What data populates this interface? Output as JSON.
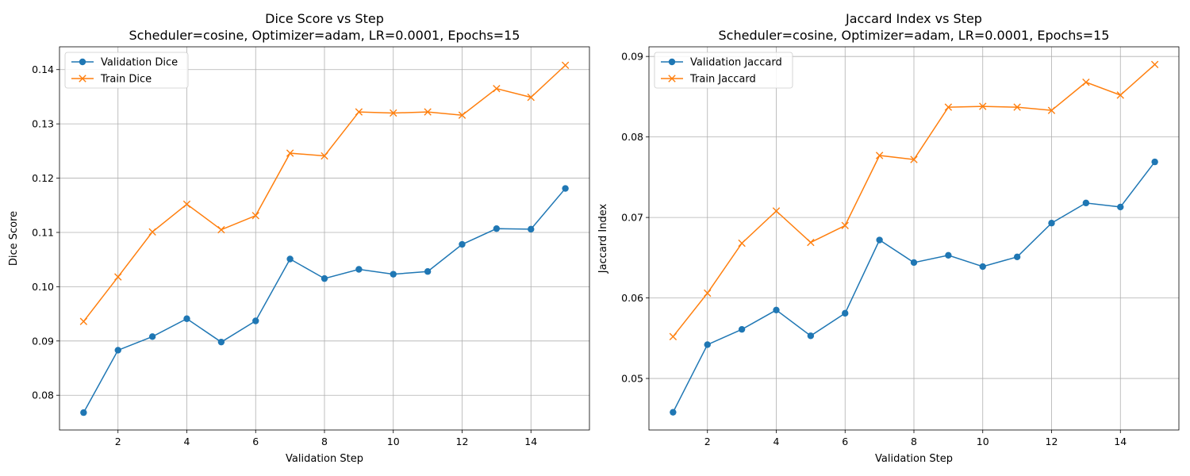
{
  "chart_data": [
    {
      "type": "line",
      "title": "Dice Score vs Step",
      "subtitle": "Scheduler=cosine, Optimizer=adam, LR=0.0001, Epochs=15",
      "xlabel": "Validation Step",
      "ylabel": "Dice Score",
      "xlim": [
        0.3,
        15.7
      ],
      "ylim": [
        0.0736,
        0.1442
      ],
      "xticks": [
        2,
        4,
        6,
        8,
        10,
        12,
        14
      ],
      "yticks": [
        0.08,
        0.09,
        0.1,
        0.11,
        0.12,
        0.13,
        0.14
      ],
      "ytick_labels": [
        "0.08",
        "0.09",
        "0.10",
        "0.11",
        "0.12",
        "0.13",
        "0.14"
      ],
      "grid": true,
      "legend_position": "top-left",
      "x": [
        1,
        2,
        3,
        4,
        5,
        6,
        7,
        8,
        9,
        10,
        11,
        12,
        13,
        14,
        15
      ],
      "series": [
        {
          "name": "Validation Dice",
          "color": "#1f77b4",
          "marker": "circle",
          "values": [
            0.0768,
            0.0883,
            0.0908,
            0.0941,
            0.0898,
            0.0937,
            0.1051,
            0.1015,
            0.1032,
            0.1023,
            0.1028,
            0.1078,
            0.1107,
            0.1106,
            0.1181
          ]
        },
        {
          "name": "Train Dice",
          "color": "#ff7f0e",
          "marker": "x",
          "values": [
            0.0936,
            0.1018,
            0.1101,
            0.1152,
            0.1105,
            0.1131,
            0.1246,
            0.1241,
            0.1322,
            0.132,
            0.1322,
            0.1316,
            0.1365,
            0.1349,
            0.1408
          ]
        }
      ]
    },
    {
      "type": "line",
      "title": "Jaccard Index vs Step",
      "subtitle": "Scheduler=cosine, Optimizer=adam, LR=0.0001, Epochs=15",
      "xlabel": "Validation Step",
      "ylabel": "Jaccard Index",
      "xlim": [
        0.3,
        15.7
      ],
      "ylim": [
        0.0436,
        0.0912
      ],
      "xticks": [
        2,
        4,
        6,
        8,
        10,
        12,
        14
      ],
      "yticks": [
        0.05,
        0.06,
        0.07,
        0.08,
        0.09
      ],
      "ytick_labels": [
        "0.05",
        "0.06",
        "0.07",
        "0.08",
        "0.09"
      ],
      "grid": true,
      "legend_position": "top-left",
      "x": [
        1,
        2,
        3,
        4,
        5,
        6,
        7,
        8,
        9,
        10,
        11,
        12,
        13,
        14,
        15
      ],
      "series": [
        {
          "name": "Validation Jaccard",
          "color": "#1f77b4",
          "marker": "circle",
          "values": [
            0.0458,
            0.0542,
            0.0561,
            0.0585,
            0.0553,
            0.0581,
            0.0672,
            0.0644,
            0.0653,
            0.0639,
            0.0651,
            0.0693,
            0.0718,
            0.0713,
            0.0769
          ]
        },
        {
          "name": "Train Jaccard",
          "color": "#ff7f0e",
          "marker": "x",
          "values": [
            0.0552,
            0.0606,
            0.0668,
            0.0708,
            0.0669,
            0.069,
            0.0777,
            0.0772,
            0.0837,
            0.0838,
            0.0837,
            0.0833,
            0.0868,
            0.0852,
            0.089
          ]
        }
      ]
    }
  ]
}
